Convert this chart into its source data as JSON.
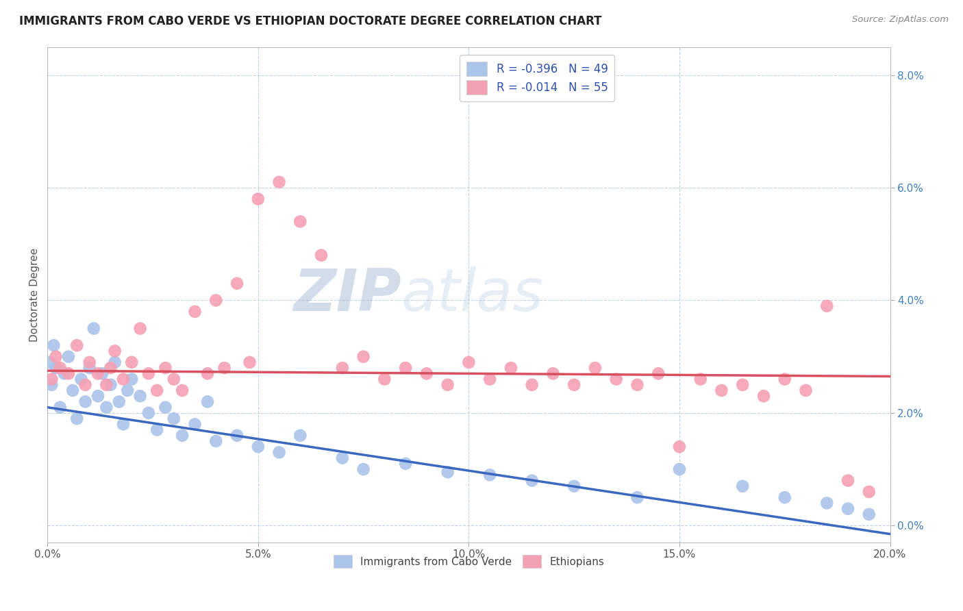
{
  "title": "IMMIGRANTS FROM CABO VERDE VS ETHIOPIAN DOCTORATE DEGREE CORRELATION CHART",
  "source": "Source: ZipAtlas.com",
  "xlabel_tick_vals": [
    0.0,
    5.0,
    10.0,
    15.0,
    20.0
  ],
  "ylabel": "Doctorate Degree",
  "ylabel_tick_vals": [
    0.0,
    2.0,
    4.0,
    6.0,
    8.0
  ],
  "xlim": [
    0.0,
    20.0
  ],
  "ylim": [
    -0.3,
    8.5
  ],
  "legend1_label": "R = -0.396   N = 49",
  "legend2_label": "R = -0.014   N = 55",
  "legend_label1_short": "Immigrants from Cabo Verde",
  "legend_label2_short": "Ethiopians",
  "cabo_verde_color": "#aac4ea",
  "ethiopians_color": "#f4a0b4",
  "cabo_verde_line_color": "#3a68c0",
  "ethiopians_line_color": "#d85060",
  "background_color": "#ffffff",
  "grid_color": "#c0d0e0",
  "cabo_verde_x": [
    0.05,
    0.1,
    0.15,
    0.2,
    0.3,
    0.4,
    0.5,
    0.6,
    0.7,
    0.8,
    0.9,
    1.0,
    1.1,
    1.2,
    1.3,
    1.4,
    1.5,
    1.6,
    1.7,
    1.8,
    1.9,
    2.0,
    2.2,
    2.4,
    2.6,
    2.8,
    3.0,
    3.2,
    3.5,
    3.8,
    4.0,
    4.5,
    5.0,
    5.5,
    6.0,
    7.0,
    7.5,
    8.5,
    9.5,
    10.5,
    11.5,
    12.5,
    14.0,
    15.0,
    16.5,
    17.5,
    18.5,
    19.0,
    19.5
  ],
  "cabo_verde_y": [
    2.9,
    2.5,
    3.2,
    2.8,
    2.1,
    2.7,
    3.0,
    2.4,
    1.9,
    2.6,
    2.2,
    2.8,
    3.5,
    2.3,
    2.7,
    2.1,
    2.5,
    2.9,
    2.2,
    1.8,
    2.4,
    2.6,
    2.3,
    2.0,
    1.7,
    2.1,
    1.9,
    1.6,
    1.8,
    2.2,
    1.5,
    1.6,
    1.4,
    1.3,
    1.6,
    1.2,
    1.0,
    1.1,
    0.95,
    0.9,
    0.8,
    0.7,
    0.5,
    1.0,
    0.7,
    0.5,
    0.4,
    0.3,
    0.2
  ],
  "ethiopians_x": [
    0.1,
    0.2,
    0.3,
    0.5,
    0.7,
    0.9,
    1.0,
    1.2,
    1.4,
    1.5,
    1.6,
    1.8,
    2.0,
    2.2,
    2.4,
    2.6,
    2.8,
    3.0,
    3.2,
    3.5,
    3.8,
    4.0,
    4.2,
    4.5,
    4.8,
    5.0,
    5.5,
    6.0,
    6.5,
    7.0,
    7.5,
    8.0,
    8.5,
    9.0,
    9.5,
    10.0,
    10.5,
    11.0,
    11.5,
    12.0,
    12.5,
    13.0,
    13.5,
    14.0,
    14.5,
    15.0,
    15.5,
    16.0,
    16.5,
    17.0,
    17.5,
    18.0,
    18.5,
    19.0,
    19.5
  ],
  "ethiopians_y": [
    2.6,
    3.0,
    2.8,
    2.7,
    3.2,
    2.5,
    2.9,
    2.7,
    2.5,
    2.8,
    3.1,
    2.6,
    2.9,
    3.5,
    2.7,
    2.4,
    2.8,
    2.6,
    2.4,
    3.8,
    2.7,
    4.0,
    2.8,
    4.3,
    2.9,
    5.8,
    6.1,
    5.4,
    4.8,
    2.8,
    3.0,
    2.6,
    2.8,
    2.7,
    2.5,
    2.9,
    2.6,
    2.8,
    2.5,
    2.7,
    2.5,
    2.8,
    2.6,
    2.5,
    2.7,
    1.4,
    2.6,
    2.4,
    2.5,
    2.3,
    2.6,
    2.4,
    3.9,
    0.8,
    0.6
  ],
  "cv_line_x0": 0.0,
  "cv_line_y0": 2.1,
  "cv_line_x1": 20.0,
  "cv_line_y1": -0.15,
  "eth_line_x0": 0.0,
  "eth_line_y0": 2.75,
  "eth_line_x1": 20.0,
  "eth_line_y1": 2.65
}
